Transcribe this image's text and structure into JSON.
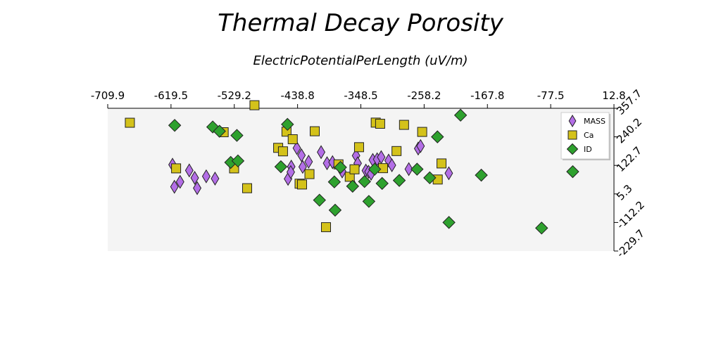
{
  "chart_data": {
    "type": "scatter",
    "title": "Thermal Decay Porosity",
    "xlabel": "ElectricPotentialPerLength (uV/m)",
    "ylabel": "",
    "xlim": [
      -709.9,
      12.8
    ],
    "ylim": [
      -229.7,
      357.7
    ],
    "x_ticks": [
      "-709.9",
      "-619.5",
      "-529.2",
      "-438.8",
      "-348.5",
      "-258.2",
      "-167.8",
      "-77.5",
      "12.8"
    ],
    "y_ticks": [
      "357.7",
      "240.2",
      "122.7",
      "5.3",
      "-112.2",
      "-229.7"
    ],
    "x_axis_position": "top",
    "y_axis_position": "right",
    "grid": false,
    "legend_position": "top-right",
    "series": [
      {
        "name": "MASS",
        "marker": "diamond",
        "color": "#b36ee6",
        "points": [
          [
            -617.4,
            125.6
          ],
          [
            -614.7,
            34.7
          ],
          [
            -606.6,
            55.1
          ],
          [
            -593.5,
            102.0
          ],
          [
            -585.7,
            71.3
          ],
          [
            -582.2,
            29.1
          ],
          [
            -569.3,
            77.6
          ],
          [
            -556.7,
            68.3
          ],
          [
            -439.9,
            193.9
          ],
          [
            -447.9,
            117.7
          ],
          [
            -452.5,
            67.1
          ],
          [
            -448.6,
            95.2
          ],
          [
            -433.3,
            164.3
          ],
          [
            -431.6,
            116.6
          ],
          [
            -423.1,
            137.9
          ],
          [
            -405.3,
            177.2
          ],
          [
            -396.8,
            131.6
          ],
          [
            -389.0,
            136.0
          ],
          [
            -375.2,
            97.5
          ],
          [
            -355.4,
            162.9
          ],
          [
            -353.1,
            131.3
          ],
          [
            -360.1,
            43.3
          ],
          [
            -341.4,
            101.3
          ],
          [
            -337.6,
            96.4
          ],
          [
            -333.9,
            88.1
          ],
          [
            -331.5,
            145.1
          ],
          [
            -325.3,
            147.9
          ],
          [
            -319.5,
            156.5
          ],
          [
            -308.9,
            142.6
          ],
          [
            -304.2,
            123.2
          ],
          [
            -280.1,
            107.3
          ],
          [
            -266.7,
            192.1
          ],
          [
            -263.3,
            202.1
          ],
          [
            -223.0,
            90.3
          ]
        ]
      },
      {
        "name": "Ca",
        "marker": "square",
        "color": "#d4c21a",
        "points": [
          [
            -678.3,
            298.2
          ],
          [
            -612.3,
            110.5
          ],
          [
            -544.4,
            259.2
          ],
          [
            -529.5,
            110.4
          ],
          [
            -510.9,
            28.8
          ],
          [
            -500.4,
            370.3
          ],
          [
            -466.6,
            194.9
          ],
          [
            -459.7,
            180.5
          ],
          [
            -454.7,
            261.5
          ],
          [
            -445.8,
            230.3
          ],
          [
            -436.0,
            47.4
          ],
          [
            -432.5,
            44.1
          ],
          [
            -421.9,
            86.9
          ],
          [
            -414.4,
            263.2
          ],
          [
            -398.3,
            -131.6
          ],
          [
            -380.5,
            127.0
          ],
          [
            -364.4,
            75.8
          ],
          [
            -357.6,
            106.6
          ],
          [
            -351.1,
            197.6
          ],
          [
            -327.3,
            298.7
          ],
          [
            -321.0,
            294.0
          ],
          [
            -316.9,
            111.3
          ],
          [
            -297.6,
            181.7
          ],
          [
            -286.9,
            289.5
          ],
          [
            -261.0,
            260.5
          ],
          [
            -238.8,
            64.6
          ],
          [
            -233.4,
            130.7
          ]
        ]
      },
      {
        "name": "ID",
        "marker": "diamond",
        "color": "#2ea12e",
        "points": [
          [
            -614.3,
            287.4
          ],
          [
            -560.0,
            280.8
          ],
          [
            -550.4,
            263.2
          ],
          [
            -534.3,
            134.9
          ],
          [
            -525.5,
            246.1
          ],
          [
            -524.0,
            141.2
          ],
          [
            -462.7,
            117.2
          ],
          [
            -453.3,
            291.6
          ],
          [
            -407.6,
            -20.4
          ],
          [
            -386.4,
            54.7
          ],
          [
            -385.3,
            -61.6
          ],
          [
            -377.6,
            114.6
          ],
          [
            -360.3,
            36.8
          ],
          [
            -343.3,
            56.2
          ],
          [
            -337.1,
            -25.5
          ],
          [
            -328.8,
            106.9
          ],
          [
            -318.2,
            48.5
          ],
          [
            -293.7,
            60.8
          ],
          [
            -268.3,
            107.0
          ],
          [
            -250.2,
            71.7
          ],
          [
            -239.2,
            240.1
          ],
          [
            -222.8,
            -112.1
          ],
          [
            -206.2,
            329.2
          ],
          [
            -176.6,
            82.5
          ],
          [
            -46.1,
            96.8
          ],
          [
            -90.5,
            -135.2
          ]
        ]
      }
    ]
  }
}
